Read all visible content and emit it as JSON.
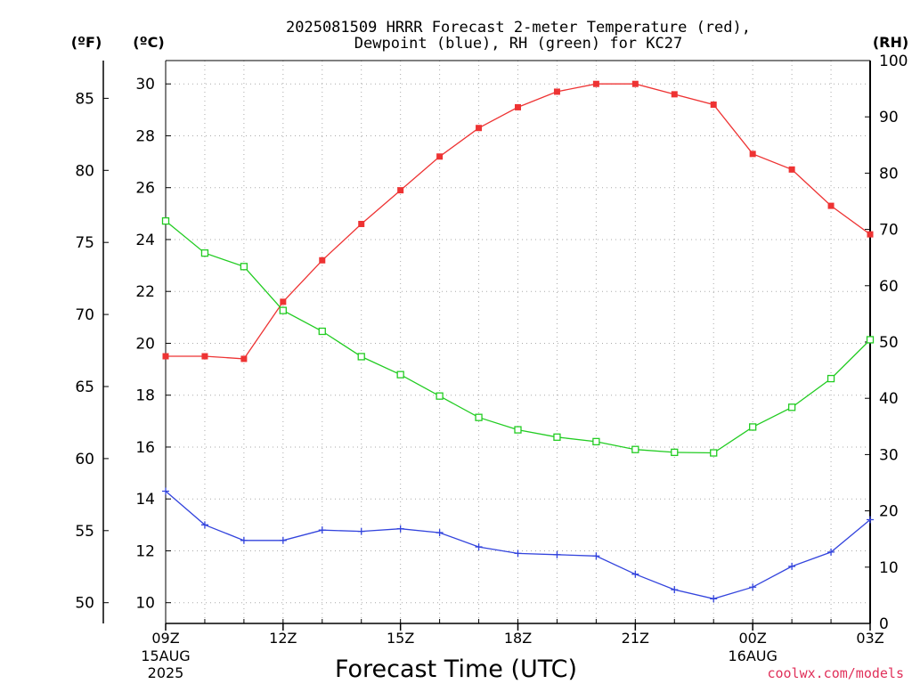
{
  "chart_data": {
    "type": "line",
    "title_line1": "2025081509 HRRR Forecast 2-meter Temperature (red),",
    "title_line2": "Dewpoint (blue), RH (green) for KC27",
    "xlabel": "Forecast Time (UTC)",
    "credit": "coolwx.com/models",
    "unit_f": "(ºF)",
    "unit_c": "(ºC)",
    "unit_rh": "(RH)",
    "x_hours": [
      0,
      1,
      2,
      3,
      4,
      5,
      6,
      7,
      8,
      9,
      10,
      11,
      12,
      13,
      14,
      15,
      16,
      17,
      18
    ],
    "x_ticks": [
      {
        "h": 0,
        "label": "09Z",
        "sub": [
          "15AUG",
          "2025"
        ]
      },
      {
        "h": 3,
        "label": "12Z",
        "sub": []
      },
      {
        "h": 6,
        "label": "15Z",
        "sub": []
      },
      {
        "h": 9,
        "label": "18Z",
        "sub": []
      },
      {
        "h": 12,
        "label": "21Z",
        "sub": []
      },
      {
        "h": 15,
        "label": "00Z",
        "sub": [
          "16AUG"
        ]
      },
      {
        "h": 18,
        "label": "03Z",
        "sub": []
      }
    ],
    "c_range": [
      9.2,
      30.9
    ],
    "c_ticks": [
      "10",
      "12",
      "14",
      "16",
      "18",
      "20",
      "22",
      "24",
      "26",
      "28",
      "30"
    ],
    "f_ticks": [
      "50",
      "55",
      "60",
      "65",
      "70",
      "75",
      "80",
      "85"
    ],
    "rh_range": [
      0,
      100
    ],
    "rh_ticks": [
      "0",
      "10",
      "20",
      "30",
      "40",
      "50",
      "60",
      "70",
      "80",
      "90",
      "100"
    ],
    "grid": true,
    "series": [
      {
        "name": "Temperature",
        "axis": "c",
        "color": "#ee3333",
        "marker": "filled-square",
        "values": [
          19.5,
          19.5,
          19.4,
          21.6,
          23.2,
          24.6,
          25.9,
          27.2,
          28.3,
          29.1,
          29.7,
          30.0,
          30.0,
          29.6,
          29.2,
          27.3,
          26.7,
          25.3,
          24.2
        ]
      },
      {
        "name": "Dewpoint",
        "axis": "c",
        "color": "#3344dd",
        "marker": "plus",
        "values": [
          14.3,
          13.0,
          12.4,
          12.4,
          12.8,
          12.75,
          12.85,
          12.7,
          12.15,
          11.9,
          11.85,
          11.8,
          11.1,
          10.5,
          10.15,
          10.6,
          11.4,
          11.95,
          13.2
        ]
      },
      {
        "name": "RH",
        "axis": "rh",
        "color": "#22cc22",
        "marker": "open-square",
        "values": [
          71.5,
          65.8,
          63.4,
          55.6,
          51.9,
          47.4,
          44.2,
          40.4,
          36.6,
          34.4,
          33.1,
          32.3,
          30.9,
          30.4,
          30.3,
          34.9,
          38.4,
          43.5,
          50.4
        ]
      }
    ]
  }
}
